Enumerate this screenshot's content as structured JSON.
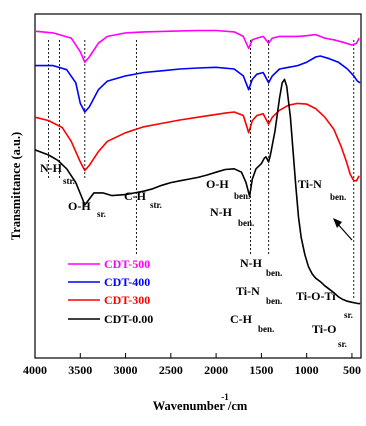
{
  "chart_data": {
    "type": "line",
    "xlabel": "Wavenumber /cm",
    "xlabel_sup": "-1",
    "ylabel": "Transmittance (a.u.)",
    "xlim": [
      4000,
      400
    ],
    "xticks": [
      "4000",
      "3500",
      "3000",
      "2500",
      "2000",
      "1500",
      "1000",
      "500"
    ],
    "grid": false,
    "legend_position": "lower-left",
    "series": [
      {
        "name": "CDT-500",
        "color": "#ff00ff",
        "points": [
          [
            4000,
            0.95
          ],
          [
            3800,
            0.945
          ],
          [
            3600,
            0.93
          ],
          [
            3500,
            0.89
          ],
          [
            3450,
            0.86
          ],
          [
            3400,
            0.875
          ],
          [
            3300,
            0.915
          ],
          [
            3200,
            0.935
          ],
          [
            3000,
            0.945
          ],
          [
            2800,
            0.948
          ],
          [
            2500,
            0.95
          ],
          [
            2200,
            0.952
          ],
          [
            2000,
            0.952
          ],
          [
            1800,
            0.948
          ],
          [
            1700,
            0.935
          ],
          [
            1640,
            0.9
          ],
          [
            1600,
            0.925
          ],
          [
            1550,
            0.93
          ],
          [
            1480,
            0.935
          ],
          [
            1420,
            0.915
          ],
          [
            1380,
            0.93
          ],
          [
            1300,
            0.935
          ],
          [
            1200,
            0.935
          ],
          [
            1100,
            0.935
          ],
          [
            1000,
            0.937
          ],
          [
            900,
            0.94
          ],
          [
            800,
            0.93
          ],
          [
            700,
            0.925
          ],
          [
            600,
            0.918
          ],
          [
            500,
            0.91
          ],
          [
            450,
            0.915
          ],
          [
            420,
            0.93
          ]
        ]
      },
      {
        "name": "CDT-400",
        "color": "#0000ff",
        "points": [
          [
            4000,
            0.85
          ],
          [
            3800,
            0.85
          ],
          [
            3650,
            0.838
          ],
          [
            3550,
            0.8
          ],
          [
            3500,
            0.74
          ],
          [
            3450,
            0.715
          ],
          [
            3400,
            0.73
          ],
          [
            3300,
            0.78
          ],
          [
            3200,
            0.805
          ],
          [
            3000,
            0.82
          ],
          [
            2800,
            0.83
          ],
          [
            2600,
            0.835
          ],
          [
            2400,
            0.84
          ],
          [
            2200,
            0.843
          ],
          [
            2000,
            0.845
          ],
          [
            1800,
            0.84
          ],
          [
            1700,
            0.82
          ],
          [
            1640,
            0.78
          ],
          [
            1600,
            0.81
          ],
          [
            1550,
            0.825
          ],
          [
            1480,
            0.83
          ],
          [
            1420,
            0.8
          ],
          [
            1380,
            0.82
          ],
          [
            1300,
            0.84
          ],
          [
            1200,
            0.845
          ],
          [
            1100,
            0.85
          ],
          [
            1000,
            0.86
          ],
          [
            900,
            0.875
          ],
          [
            850,
            0.878
          ],
          [
            750,
            0.87
          ],
          [
            650,
            0.86
          ],
          [
            550,
            0.84
          ],
          [
            480,
            0.82
          ],
          [
            440,
            0.805
          ],
          [
            410,
            0.8
          ]
        ]
      },
      {
        "name": "CDT-300",
        "color": "#ff0000",
        "points": [
          [
            4000,
            0.7
          ],
          [
            3850,
            0.69
          ],
          [
            3700,
            0.67
          ],
          [
            3600,
            0.63
          ],
          [
            3500,
            0.57
          ],
          [
            3450,
            0.545
          ],
          [
            3400,
            0.56
          ],
          [
            3300,
            0.6
          ],
          [
            3200,
            0.63
          ],
          [
            3000,
            0.655
          ],
          [
            2800,
            0.672
          ],
          [
            2600,
            0.682
          ],
          [
            2400,
            0.692
          ],
          [
            2200,
            0.7
          ],
          [
            2000,
            0.708
          ],
          [
            1900,
            0.712
          ],
          [
            1800,
            0.715
          ],
          [
            1700,
            0.705
          ],
          [
            1640,
            0.655
          ],
          [
            1600,
            0.69
          ],
          [
            1550,
            0.705
          ],
          [
            1480,
            0.71
          ],
          [
            1420,
            0.68
          ],
          [
            1380,
            0.7
          ],
          [
            1300,
            0.72
          ],
          [
            1200,
            0.735
          ],
          [
            1100,
            0.74
          ],
          [
            1000,
            0.738
          ],
          [
            900,
            0.725
          ],
          [
            800,
            0.7
          ],
          [
            700,
            0.665
          ],
          [
            620,
            0.615
          ],
          [
            560,
            0.57
          ],
          [
            520,
            0.535
          ],
          [
            480,
            0.515
          ],
          [
            450,
            0.515
          ],
          [
            420,
            0.53
          ]
        ]
      },
      {
        "name": "CDT-0.00",
        "color": "#000000",
        "points": [
          [
            4000,
            0.605
          ],
          [
            3850,
            0.59
          ],
          [
            3750,
            0.575
          ],
          [
            3650,
            0.55
          ],
          [
            3550,
            0.51
          ],
          [
            3480,
            0.465
          ],
          [
            3450,
            0.445
          ],
          [
            3420,
            0.455
          ],
          [
            3350,
            0.48
          ],
          [
            3250,
            0.48
          ],
          [
            3150,
            0.472
          ],
          [
            3000,
            0.475
          ],
          [
            2900,
            0.48
          ],
          [
            2800,
            0.485
          ],
          [
            2700,
            0.492
          ],
          [
            2600,
            0.502
          ],
          [
            2500,
            0.51
          ],
          [
            2400,
            0.515
          ],
          [
            2300,
            0.52
          ],
          [
            2200,
            0.525
          ],
          [
            2100,
            0.532
          ],
          [
            2000,
            0.54
          ],
          [
            1900,
            0.548
          ],
          [
            1800,
            0.55
          ],
          [
            1720,
            0.54
          ],
          [
            1670,
            0.51
          ],
          [
            1630,
            0.47
          ],
          [
            1600,
            0.52
          ],
          [
            1560,
            0.55
          ],
          [
            1500,
            0.565
          ],
          [
            1470,
            0.58
          ],
          [
            1450,
            0.585
          ],
          [
            1420,
            0.57
          ],
          [
            1400,
            0.59
          ],
          [
            1350,
            0.66
          ],
          [
            1300,
            0.755
          ],
          [
            1270,
            0.8
          ],
          [
            1245,
            0.81
          ],
          [
            1220,
            0.79
          ],
          [
            1180,
            0.7
          ],
          [
            1150,
            0.6
          ],
          [
            1120,
            0.5
          ],
          [
            1090,
            0.41
          ],
          [
            1060,
            0.35
          ],
          [
            1020,
            0.3
          ],
          [
            980,
            0.265
          ],
          [
            940,
            0.245
          ],
          [
            900,
            0.232
          ],
          [
            850,
            0.222
          ],
          [
            800,
            0.21
          ],
          [
            750,
            0.2
          ],
          [
            700,
            0.19
          ],
          [
            650,
            0.178
          ],
          [
            600,
            0.17
          ],
          [
            550,
            0.165
          ],
          [
            500,
            0.162
          ],
          [
            460,
            0.16
          ],
          [
            430,
            0.158
          ],
          [
            410,
            0.158
          ]
        ]
      }
    ],
    "annotations": [
      {
        "text": "N-H",
        "sub": "str."
      },
      {
        "text": "O-H",
        "sub": "sr."
      },
      {
        "text": "C-H",
        "sub": "str."
      },
      {
        "text": "O-H",
        "sub": "ben."
      },
      {
        "text": "N-H",
        "sub": "ben."
      },
      {
        "text": "N-H",
        "sub": "ben."
      },
      {
        "text": "Ti-N",
        "sub": "ben."
      },
      {
        "text": "C-H",
        "sub": "ben."
      },
      {
        "text": "Ti-O-Ti",
        "sub": "sr."
      },
      {
        "text": "Ti-O",
        "sub": "sr."
      },
      {
        "text": "Ti-N",
        "sub": "ben."
      }
    ],
    "dashed_markers_wavenumber": [
      3850,
      3730,
      3450,
      2880,
      1620,
      1420,
      480
    ]
  }
}
